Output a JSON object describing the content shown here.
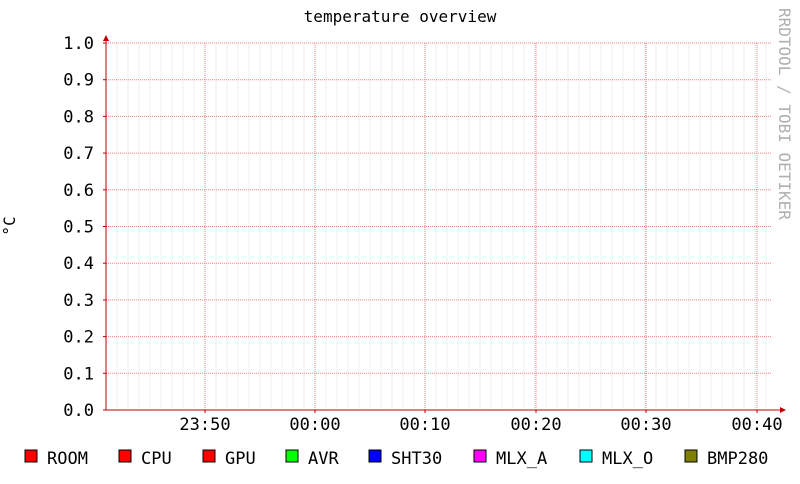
{
  "chart_data": {
    "type": "line",
    "title": "temperature overview",
    "ylabel": "°C",
    "xlabel": "",
    "ylim": [
      0.0,
      1.0
    ],
    "yticks": [
      "0.0",
      "0.1",
      "0.2",
      "0.3",
      "0.4",
      "0.5",
      "0.6",
      "0.7",
      "0.8",
      "0.9",
      "1.0"
    ],
    "xticks": [
      "23:50",
      "00:00",
      "00:10",
      "00:20",
      "00:30",
      "00:40"
    ],
    "grid": true,
    "legend_position": "bottom",
    "series": [
      {
        "name": "ROOM",
        "color": "#ff0000",
        "values": []
      },
      {
        "name": "CPU",
        "color": "#ff0000",
        "values": []
      },
      {
        "name": "GPU",
        "color": "#ff0000",
        "values": []
      },
      {
        "name": "AVR",
        "color": "#00ff00",
        "values": []
      },
      {
        "name": "SHT30",
        "color": "#0000ff",
        "values": []
      },
      {
        "name": "MLX_A",
        "color": "#ff00ff",
        "values": []
      },
      {
        "name": "MLX_O",
        "color": "#00ffff",
        "values": []
      },
      {
        "name": "BMP280",
        "color": "#808000",
        "values": []
      }
    ],
    "watermark": "RRDTOOL / TOBI OETIKER"
  }
}
